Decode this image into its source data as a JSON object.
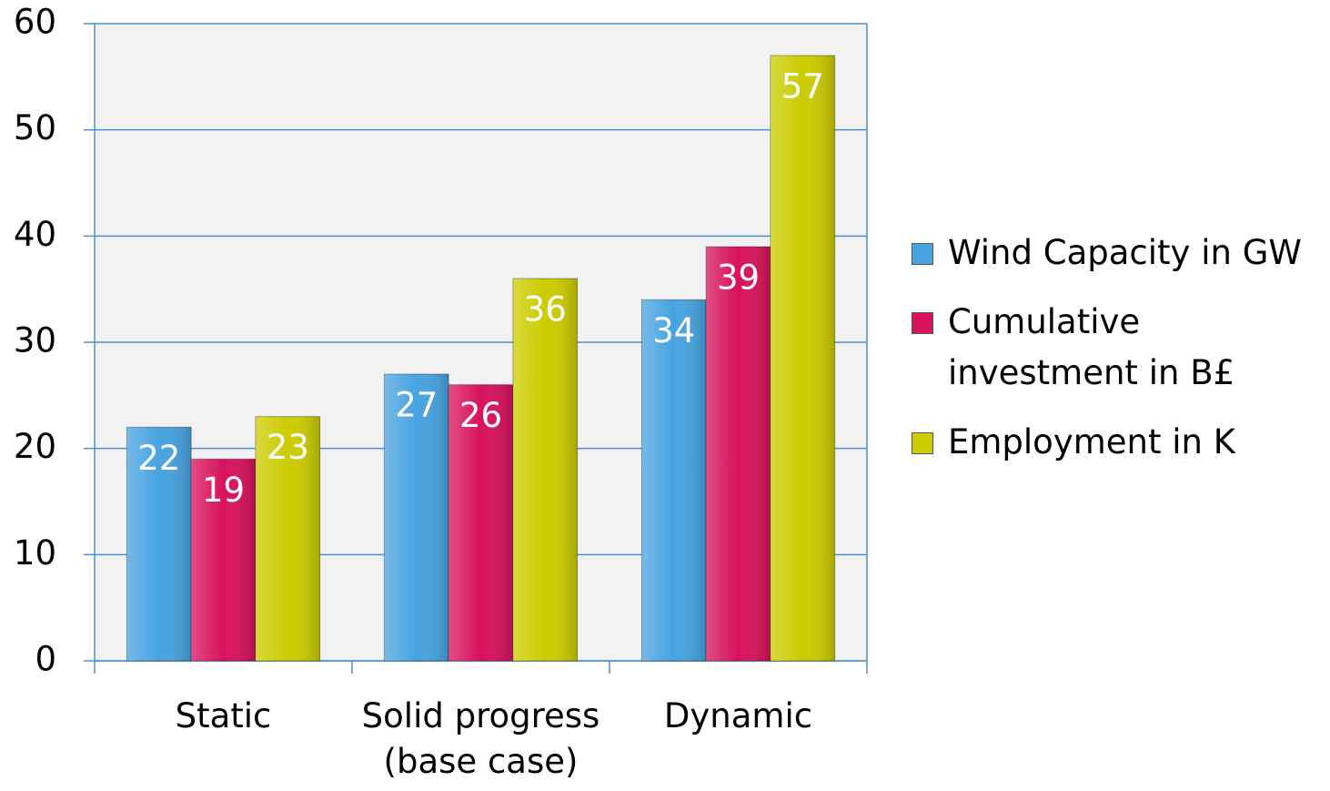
{
  "chart_data": {
    "type": "bar",
    "categories": [
      "Static",
      "Solid progress (base case)",
      "Dynamic"
    ],
    "series": [
      {
        "name": "Wind Capacity in GW",
        "color": "#47a3e0",
        "values": [
          22,
          27,
          34
        ]
      },
      {
        "name": "Cumulative investment in B£",
        "color": "#d8125c",
        "values": [
          19,
          26,
          39
        ]
      },
      {
        "name": "Employment in K",
        "color": "#cccc00",
        "values": [
          23,
          36,
          57
        ]
      }
    ],
    "ylim": [
      0,
      60
    ],
    "yticks": [
      0,
      10,
      20,
      30,
      40,
      50,
      60
    ],
    "grid": true,
    "legend": "right"
  }
}
